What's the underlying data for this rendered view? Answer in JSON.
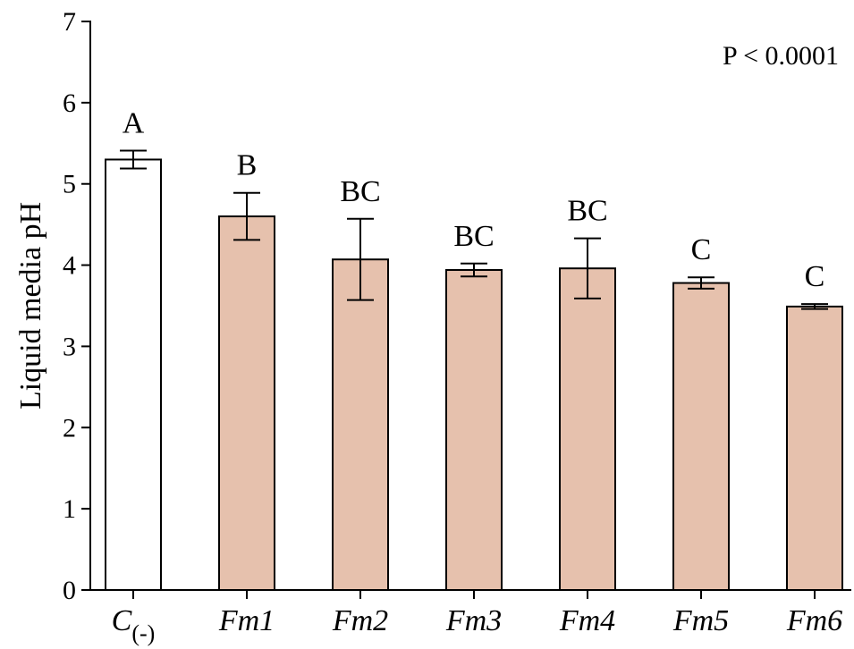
{
  "chart_data": {
    "type": "bar",
    "categories": [
      {
        "main": "C",
        "sub": "(-)"
      },
      {
        "main": "Fm1",
        "sub": ""
      },
      {
        "main": "Fm2",
        "sub": ""
      },
      {
        "main": "Fm3",
        "sub": ""
      },
      {
        "main": "Fm4",
        "sub": ""
      },
      {
        "main": "Fm5",
        "sub": ""
      },
      {
        "main": "Fm6",
        "sub": ""
      }
    ],
    "values": [
      5.3,
      4.6,
      4.07,
      3.94,
      3.96,
      3.78,
      3.49
    ],
    "errors": [
      0.11,
      0.29,
      0.5,
      0.08,
      0.37,
      0.07,
      0.03
    ],
    "significance": [
      "A",
      "B",
      "BC",
      "BC",
      "BC",
      "C",
      "C"
    ],
    "bar_colors": [
      "#ffffff",
      "#e6c1ad",
      "#e6c1ad",
      "#e6c1ad",
      "#e6c1ad",
      "#e6c1ad",
      "#e6c1ad"
    ],
    "ylabel": "Liquid media pH",
    "xlabel": "",
    "ylim": [
      0,
      7
    ],
    "yticks": [
      0,
      1,
      2,
      3,
      4,
      5,
      6,
      7
    ],
    "annotation": "P < 0.0001",
    "grid": false
  }
}
